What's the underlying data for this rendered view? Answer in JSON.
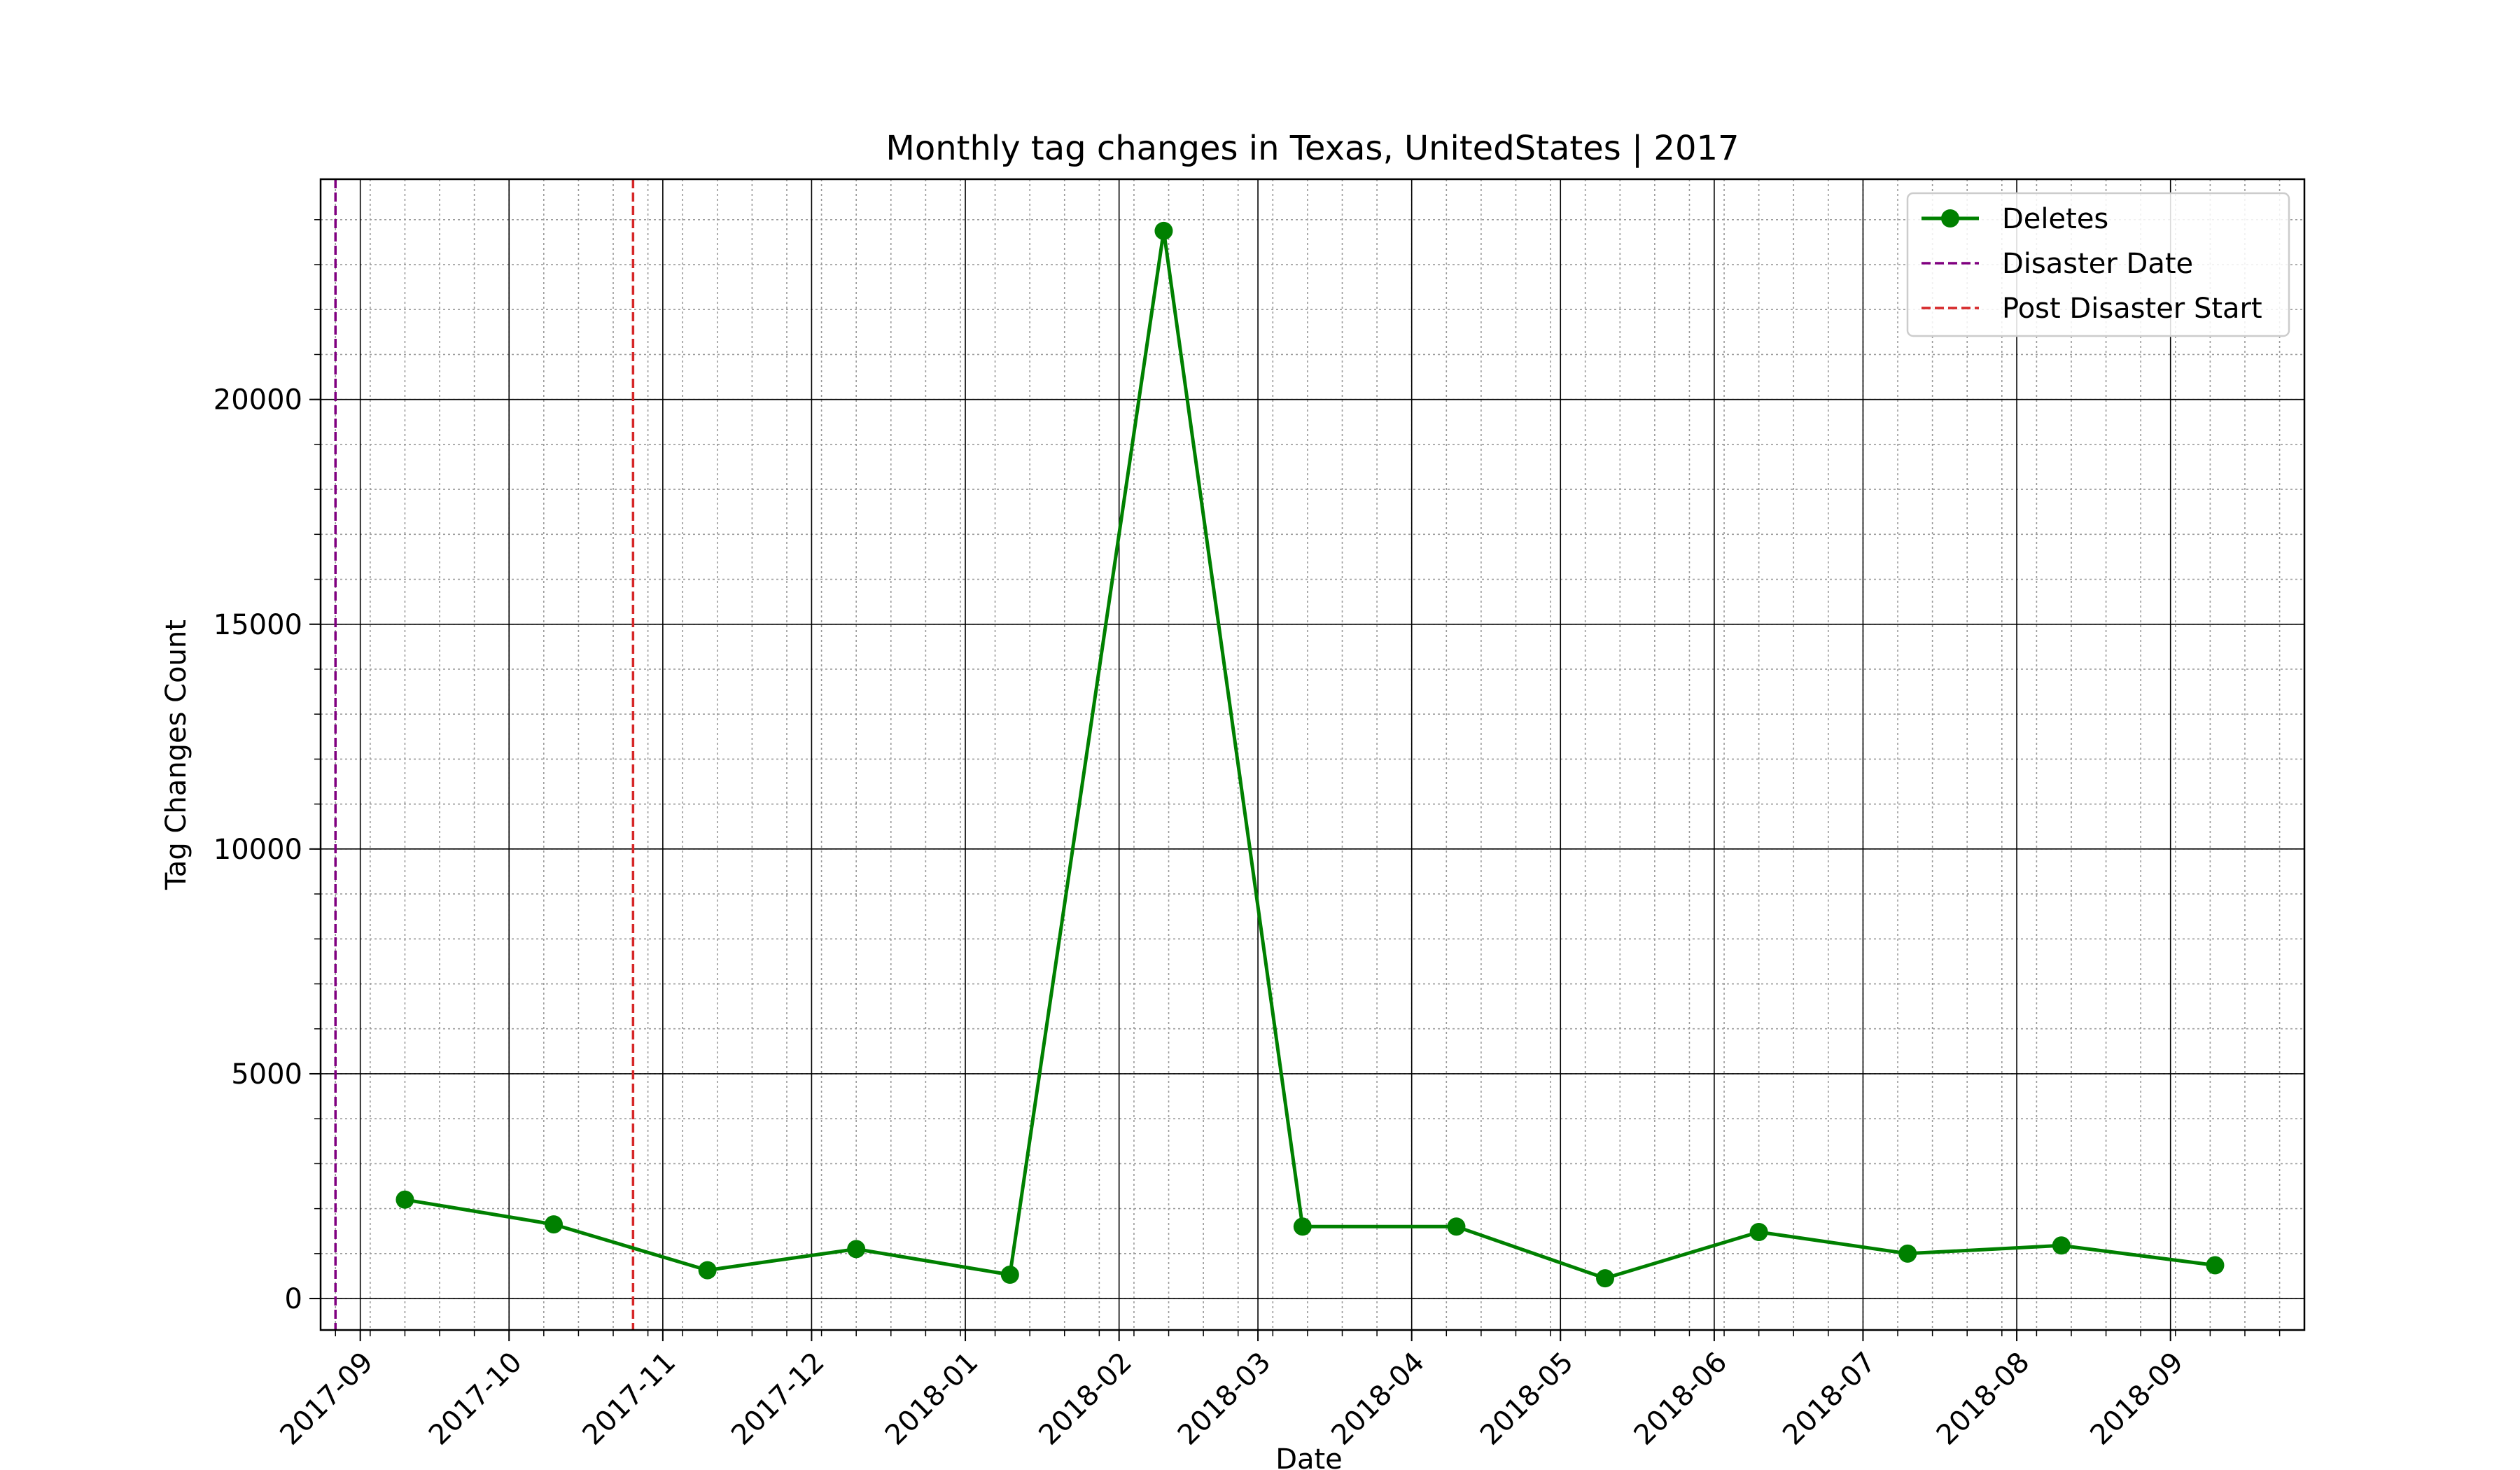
{
  "chart_data": {
    "type": "line",
    "title": "Monthly tag changes in Texas, UnitedStates | 2017",
    "xlabel": "Date",
    "ylabel": "Tag Changes Count",
    "x_tick_labels": [
      "2017-09",
      "2017-10",
      "2017-11",
      "2017-12",
      "2018-01",
      "2018-02",
      "2018-03",
      "2018-04",
      "2018-05",
      "2018-06",
      "2018-07",
      "2018-08",
      "2018-09"
    ],
    "y_tick_labels": [
      "0",
      "5000",
      "10000",
      "15000",
      "20000"
    ],
    "y_ticks": [
      0,
      5000,
      10000,
      15000,
      20000
    ],
    "xlim": [
      "2017-08-24",
      "2018-09-28"
    ],
    "ylim": [
      -700,
      24900
    ],
    "grid": {
      "major": true,
      "minor": true
    },
    "legend_position": "top-right",
    "series": [
      {
        "name": "Deletes",
        "color": "#008000",
        "marker": "circle",
        "x": [
          "2017-09-10",
          "2017-10-10",
          "2017-11-10",
          "2017-12-10",
          "2018-01-10",
          "2018-02-10",
          "2018-03-10",
          "2018-04-10",
          "2018-05-10",
          "2018-06-10",
          "2018-07-10",
          "2018-08-10",
          "2018-09-10"
        ],
        "values": [
          2200,
          1650,
          630,
          1100,
          530,
          23750,
          1600,
          1600,
          450,
          1480,
          1000,
          1180,
          740
        ]
      }
    ],
    "reference_lines": [
      {
        "name": "Disaster Date",
        "date": "2017-08-27",
        "color": "#800080",
        "style": "dashed"
      },
      {
        "name": "Post Disaster Start",
        "date": "2017-10-26",
        "color": "#d62728",
        "style": "dashed"
      }
    ]
  }
}
